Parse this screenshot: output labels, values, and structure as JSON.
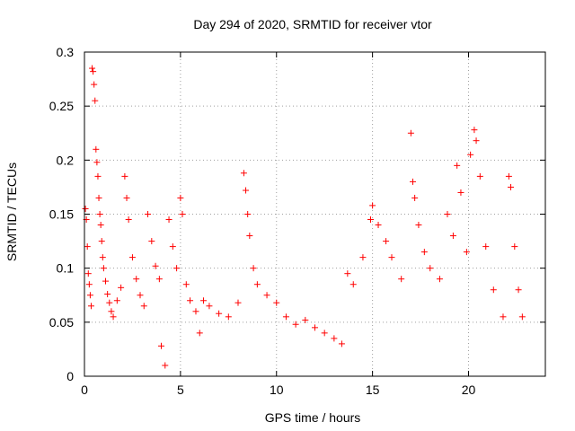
{
  "chart_data": {
    "type": "scatter",
    "title": "Day 294 of 2020, SRMTID for receiver vtor",
    "xlabel": "GPS time / hours",
    "ylabel": "SRMTID / TECUs",
    "xlim": [
      0,
      24
    ],
    "ylim": [
      0,
      0.3
    ],
    "xticks": [
      0,
      5,
      10,
      15,
      20
    ],
    "yticks": [
      0,
      0.05,
      0.1,
      0.15,
      0.2,
      0.25,
      0.3
    ],
    "xtick_labels": [
      "0",
      "5",
      "10",
      "15",
      "20"
    ],
    "ytick_labels": [
      "0",
      "0.05",
      "0.1",
      "0.15",
      "0.2",
      "0.25",
      "0.3"
    ],
    "grid": true,
    "marker": "+",
    "series": [
      {
        "name": "SRMTID",
        "color": "#ff0000",
        "sample_points": [
          [
            0.05,
            0.155
          ],
          [
            0.1,
            0.145
          ],
          [
            0.15,
            0.12
          ],
          [
            0.2,
            0.095
          ],
          [
            0.25,
            0.085
          ],
          [
            0.3,
            0.075
          ],
          [
            0.35,
            0.065
          ],
          [
            0.4,
            0.285
          ],
          [
            0.45,
            0.282
          ],
          [
            0.5,
            0.27
          ],
          [
            0.55,
            0.255
          ],
          [
            0.6,
            0.21
          ],
          [
            0.65,
            0.198
          ],
          [
            0.7,
            0.185
          ],
          [
            0.75,
            0.165
          ],
          [
            0.8,
            0.15
          ],
          [
            0.85,
            0.14
          ],
          [
            0.9,
            0.125
          ],
          [
            0.95,
            0.11
          ],
          [
            1.0,
            0.1
          ],
          [
            1.1,
            0.088
          ],
          [
            1.2,
            0.076
          ],
          [
            1.3,
            0.068
          ],
          [
            1.4,
            0.06
          ],
          [
            1.5,
            0.055
          ],
          [
            1.7,
            0.07
          ],
          [
            1.9,
            0.082
          ],
          [
            2.1,
            0.185
          ],
          [
            2.2,
            0.165
          ],
          [
            2.3,
            0.145
          ],
          [
            2.5,
            0.11
          ],
          [
            2.7,
            0.09
          ],
          [
            2.9,
            0.075
          ],
          [
            3.1,
            0.065
          ],
          [
            3.3,
            0.15
          ],
          [
            3.5,
            0.125
          ],
          [
            3.7,
            0.102
          ],
          [
            3.9,
            0.09
          ],
          [
            4.0,
            0.028
          ],
          [
            4.2,
            0.01
          ],
          [
            4.4,
            0.145
          ],
          [
            4.6,
            0.12
          ],
          [
            4.8,
            0.1
          ],
          [
            5.0,
            0.165
          ],
          [
            5.1,
            0.15
          ],
          [
            5.3,
            0.085
          ],
          [
            5.5,
            0.07
          ],
          [
            5.8,
            0.06
          ],
          [
            6.0,
            0.04
          ],
          [
            6.2,
            0.07
          ],
          [
            6.5,
            0.065
          ],
          [
            7.0,
            0.058
          ],
          [
            7.5,
            0.055
          ],
          [
            8.0,
            0.068
          ],
          [
            8.3,
            0.188
          ],
          [
            8.4,
            0.172
          ],
          [
            8.5,
            0.15
          ],
          [
            8.6,
            0.13
          ],
          [
            8.8,
            0.1
          ],
          [
            9.0,
            0.085
          ],
          [
            9.5,
            0.075
          ],
          [
            10.0,
            0.068
          ],
          [
            10.5,
            0.055
          ],
          [
            11.0,
            0.048
          ],
          [
            11.5,
            0.052
          ],
          [
            12.0,
            0.045
          ],
          [
            12.5,
            0.04
          ],
          [
            13.0,
            0.035
          ],
          [
            13.4,
            0.03
          ],
          [
            13.7,
            0.095
          ],
          [
            14.0,
            0.085
          ],
          [
            14.5,
            0.11
          ],
          [
            14.9,
            0.145
          ],
          [
            15.0,
            0.158
          ],
          [
            15.3,
            0.14
          ],
          [
            15.7,
            0.125
          ],
          [
            16.0,
            0.11
          ],
          [
            16.5,
            0.09
          ],
          [
            17.0,
            0.225
          ],
          [
            17.1,
            0.18
          ],
          [
            17.2,
            0.165
          ],
          [
            17.4,
            0.14
          ],
          [
            17.7,
            0.115
          ],
          [
            18.0,
            0.1
          ],
          [
            18.5,
            0.09
          ],
          [
            18.9,
            0.15
          ],
          [
            19.2,
            0.13
          ],
          [
            19.4,
            0.195
          ],
          [
            19.6,
            0.17
          ],
          [
            19.9,
            0.115
          ],
          [
            20.1,
            0.205
          ],
          [
            20.3,
            0.228
          ],
          [
            20.4,
            0.218
          ],
          [
            20.6,
            0.185
          ],
          [
            20.9,
            0.12
          ],
          [
            21.3,
            0.08
          ],
          [
            21.8,
            0.055
          ],
          [
            22.1,
            0.185
          ],
          [
            22.2,
            0.175
          ],
          [
            22.4,
            0.12
          ],
          [
            22.6,
            0.08
          ],
          [
            22.8,
            0.055
          ]
        ]
      }
    ]
  }
}
